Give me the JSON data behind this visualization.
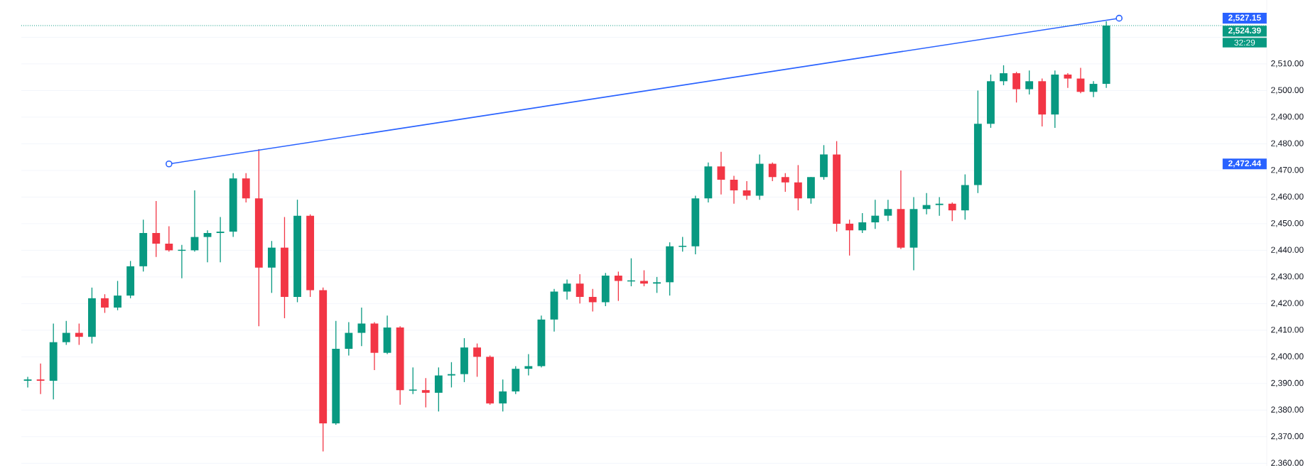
{
  "chart_data": {
    "type": "candlestick",
    "categories": [
      null,
      null,
      null,
      null,
      null,
      null,
      null,
      null,
      null,
      null,
      null,
      null,
      null,
      null,
      null,
      null,
      null,
      null,
      null,
      null,
      null,
      null,
      null,
      null,
      null,
      null,
      null,
      null,
      null,
      null,
      null,
      null,
      null,
      null,
      null,
      null,
      null,
      null,
      null,
      null,
      null,
      null,
      null,
      null,
      null,
      null,
      null,
      null,
      null,
      null,
      null,
      null,
      null,
      null,
      null,
      null,
      null,
      null,
      null,
      null,
      null,
      null,
      null,
      null,
      null,
      null,
      null,
      null,
      null,
      null,
      null,
      null,
      null,
      null,
      null,
      null,
      null,
      null,
      null,
      null,
      null,
      null,
      null,
      null,
      null,
      null,
      null,
      null,
      null,
      null,
      null,
      null,
      null,
      null,
      null,
      null,
      null
    ],
    "series": [
      {
        "ohlc": [
          [
            2391,
            2392.5,
            2388.5,
            2391.5
          ],
          [
            2391.5,
            2397.5,
            2386,
            2391
          ],
          [
            2391,
            2412.5,
            2384,
            2405.5
          ],
          [
            2405.5,
            2413.5,
            2404.5,
            2409
          ],
          [
            2409,
            2412.5,
            2404.5,
            2407.5
          ],
          [
            2407.5,
            2426,
            2405,
            2422
          ],
          [
            2422,
            2423.5,
            2416.5,
            2418.5
          ],
          [
            2418.5,
            2428.5,
            2417.5,
            2423
          ],
          [
            2423,
            2436,
            2422,
            2434
          ],
          [
            2434,
            2451.5,
            2432,
            2446.5
          ],
          [
            2446.5,
            2458.5,
            2437.5,
            2442.5
          ],
          [
            2442.5,
            2449,
            2439.5,
            2440
          ],
          [
            2440,
            2442,
            2429.5,
            2440
          ],
          [
            2440,
            2462.5,
            2439.5,
            2445
          ],
          [
            2445,
            2447.5,
            2435.5,
            2446.5
          ],
          [
            2446.5,
            2452.5,
            2435.5,
            2447
          ],
          [
            2447,
            2469,
            2445,
            2467
          ],
          [
            2467,
            2469,
            2458,
            2459.5
          ],
          [
            2459.5,
            2478,
            2411.5,
            2433.5
          ],
          [
            2433.5,
            2443.5,
            2424,
            2441
          ],
          [
            2441,
            2452.5,
            2414.5,
            2422.5
          ],
          [
            2422.5,
            2459,
            2420.5,
            2453
          ],
          [
            2453,
            2453.5,
            2422.5,
            2425
          ],
          [
            2425,
            2426,
            2364.5,
            2375
          ],
          [
            2375,
            2413.5,
            2374.5,
            2403
          ],
          [
            2403,
            2413,
            2400.5,
            2409
          ],
          [
            2409,
            2418.5,
            2404,
            2412.5
          ],
          [
            2412.5,
            2413,
            2395,
            2401.5
          ],
          [
            2401.5,
            2415.5,
            2401,
            2411
          ],
          [
            2411,
            2411.5,
            2382,
            2387.5
          ],
          [
            2387.5,
            2396,
            2386,
            2387.5
          ],
          [
            2387.5,
            2392,
            2381,
            2386.5
          ],
          [
            2386.5,
            2396,
            2379.5,
            2393
          ],
          [
            2393,
            2398,
            2388.5,
            2393.5
          ],
          [
            2393.5,
            2407,
            2390.5,
            2403.5
          ],
          [
            2403.5,
            2405,
            2392.5,
            2400
          ],
          [
            2400,
            2400.5,
            2382,
            2382.5
          ],
          [
            2382.5,
            2391.5,
            2379.5,
            2387
          ],
          [
            2387,
            2396.5,
            2386,
            2395.5
          ],
          [
            2395.5,
            2401,
            2393,
            2396.5
          ],
          [
            2396.5,
            2415.5,
            2396,
            2414
          ],
          [
            2414,
            2425.5,
            2409.5,
            2424.5
          ],
          [
            2424.5,
            2429,
            2421.5,
            2427.5
          ],
          [
            2427.5,
            2431,
            2420,
            2422.5
          ],
          [
            2422.5,
            2425.5,
            2417,
            2420.5
          ],
          [
            2420.5,
            2431.5,
            2419,
            2430.5
          ],
          [
            2430.5,
            2432,
            2421,
            2428.5
          ],
          [
            2428.5,
            2437,
            2426.5,
            2428.5
          ],
          [
            2428.5,
            2432.5,
            2426.5,
            2427.5
          ],
          [
            2427.5,
            2430,
            2424,
            2428
          ],
          [
            2428,
            2443,
            2423,
            2441.5
          ],
          [
            2441.5,
            2445,
            2439.5,
            2441.5
          ],
          [
            2441.5,
            2460.5,
            2438.5,
            2459.5
          ],
          [
            2459.5,
            2473,
            2458,
            2471.5
          ],
          [
            2471.5,
            2477,
            2461,
            2466.5
          ],
          [
            2466.5,
            2468,
            2457.5,
            2462.5
          ],
          [
            2462.5,
            2466,
            2459,
            2460.5
          ],
          [
            2460.5,
            2476,
            2459,
            2472.5
          ],
          [
            2472.5,
            2473,
            2466,
            2467.5
          ],
          [
            2467.5,
            2469,
            2462,
            2465.5
          ],
          [
            2465.5,
            2472,
            2455,
            2459.5
          ],
          [
            2459.5,
            2467.5,
            2457.5,
            2467.5
          ],
          [
            2467.5,
            2479.5,
            2466.5,
            2476
          ],
          [
            2476,
            2481,
            2447,
            2450
          ],
          [
            2450,
            2451.5,
            2438,
            2447.5
          ],
          [
            2447.5,
            2454,
            2446.5,
            2450.5
          ],
          [
            2450.5,
            2459,
            2448,
            2453
          ],
          [
            2453,
            2459,
            2451,
            2455.5
          ],
          [
            2455.5,
            2470,
            2440.5,
            2441
          ],
          [
            2441,
            2460,
            2432.5,
            2455.5
          ],
          [
            2455.5,
            2461.5,
            2453.5,
            2457
          ],
          [
            2457,
            2460,
            2453,
            2457.5
          ],
          [
            2457.5,
            2458,
            2451,
            2455
          ],
          [
            2455,
            2468.5,
            2451.5,
            2464.5
          ],
          [
            2464.5,
            2500,
            2461.5,
            2487.5
          ],
          [
            2487.5,
            2506,
            2486,
            2503.5
          ],
          [
            2503.5,
            2509.5,
            2502,
            2506.5
          ],
          [
            2506.5,
            2507,
            2495.5,
            2500.5
          ],
          [
            2500.5,
            2507.5,
            2498.5,
            2503.5
          ],
          [
            2503.5,
            2504.5,
            2486.5,
            2491
          ],
          [
            2491,
            2507.5,
            2486,
            2506
          ],
          [
            2506,
            2506.5,
            2501,
            2504.5
          ],
          [
            2504.5,
            2508.5,
            2499,
            2499.5
          ],
          [
            2499.5,
            2503.5,
            2497.5,
            2502.5
          ],
          [
            2502.5,
            2526,
            2501,
            2524.39
          ],
          null,
          null,
          null,
          null,
          null,
          null,
          null,
          null,
          null,
          null,
          null,
          null
        ],
        "colors": [
          "#089981",
          "#f23645",
          "#089981",
          "#089981",
          "#f23645",
          "#089981",
          "#f23645",
          "#089981",
          "#089981",
          "#089981",
          "#f23645",
          "#f23645",
          "#089981",
          "#089981",
          "#089981",
          "#089981",
          "#089981",
          "#f23645",
          "#f23645",
          "#089981",
          "#f23645",
          "#089981",
          "#f23645",
          "#f23645",
          "#089981",
          "#089981",
          "#089981",
          "#f23645",
          "#089981",
          "#f23645",
          "#089981",
          "#f23645",
          "#089981",
          "#089981",
          "#089981",
          "#f23645",
          "#f23645",
          "#089981",
          "#089981",
          "#089981",
          "#089981",
          "#089981",
          "#089981",
          "#f23645",
          "#f23645",
          "#089981",
          "#f23645",
          "#089981",
          "#f23645",
          "#089981",
          "#089981",
          "#089981",
          "#089981",
          "#089981",
          "#f23645",
          "#f23645",
          "#f23645",
          "#089981",
          "#f23645",
          "#f23645",
          "#f23645",
          "#089981",
          "#089981",
          "#f23645",
          "#f23645",
          "#089981",
          "#089981",
          "#089981",
          "#f23645",
          "#089981",
          "#089981",
          "#089981",
          "#f23645",
          "#089981",
          "#089981",
          "#089981",
          "#089981",
          "#f23645",
          "#089981",
          "#f23645",
          "#089981",
          "#f23645",
          "#f23645",
          "#089981",
          "#089981",
          null,
          null,
          null,
          null,
          null,
          null,
          null,
          null,
          null,
          null,
          null,
          null
        ]
      },
      {
        "type": "line",
        "values": [
          null,
          null,
          null,
          null,
          null,
          null,
          null,
          null,
          null,
          null,
          null,
          2472.44,
          null,
          null,
          null,
          null,
          null,
          null,
          null,
          null,
          null,
          null,
          null,
          null,
          null,
          null,
          null,
          null,
          null,
          null,
          null,
          null,
          null,
          null,
          null,
          null,
          null,
          null,
          null,
          null,
          null,
          null,
          null,
          null,
          null,
          null,
          null,
          null,
          null,
          null,
          null,
          null,
          null,
          null,
          null,
          null,
          null,
          null,
          null,
          null,
          null,
          null,
          null,
          null,
          null,
          null,
          null,
          null,
          null,
          null,
          null,
          null,
          null,
          null,
          null,
          null,
          null,
          null,
          null,
          null,
          null,
          null,
          null,
          null,
          null,
          2527.15,
          null,
          null,
          null,
          null,
          null,
          null,
          null,
          null,
          null,
          null,
          null
        ],
        "color": "#2962ff",
        "marker": "circle"
      }
    ],
    "ylim": [
      2359,
      2534
    ],
    "yticks": [
      {
        "value": 2360,
        "label": "2,360.00"
      },
      {
        "value": 2370,
        "label": "2,370.00"
      },
      {
        "value": 2380,
        "label": "2,380.00"
      },
      {
        "value": 2390,
        "label": "2,390.00"
      },
      {
        "value": 2400,
        "label": "2,400.00"
      },
      {
        "value": 2410,
        "label": "2,410.00"
      },
      {
        "value": 2420,
        "label": "2,420.00"
      },
      {
        "value": 2430,
        "label": "2,430.00"
      },
      {
        "value": 2440,
        "label": "2,440.00"
      },
      {
        "value": 2450,
        "label": "2,450.00"
      },
      {
        "value": 2460,
        "label": "2,460.00"
      },
      {
        "value": 2470,
        "label": "2,470.00"
      },
      {
        "value": 2480,
        "label": "2,480.00"
      },
      {
        "value": 2490,
        "label": "2,490.00"
      },
      {
        "value": 2500,
        "label": "2,500.00"
      },
      {
        "value": 2510,
        "label": "2,510.00"
      },
      {
        "value": 2520,
        "label": null
      }
    ],
    "ref_lines": [
      {
        "axis": "y",
        "value": 2524.39,
        "label": "2,524.39",
        "color": "#089981",
        "line_style": "dotted"
      }
    ],
    "annotations": [
      "2,527.15",
      "2,472.44",
      {
        "text": "32:29",
        "y": 2524.39
      }
    ],
    "grid": "y"
  }
}
